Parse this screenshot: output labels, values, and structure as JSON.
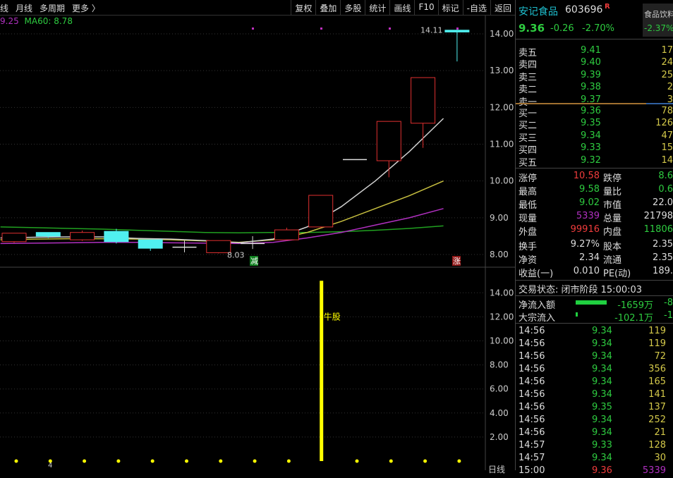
{
  "toolbar": {
    "left": [
      "线",
      "月线",
      "多周期",
      "更多 〉"
    ],
    "right": [
      "复权",
      "叠加",
      "多股",
      "统计",
      "画线",
      "F10",
      "标记",
      "-自选",
      "返回"
    ]
  },
  "ma_legend": {
    "prev": "9.25",
    "ma60": "MA60: 8.78"
  },
  "colors": {
    "up": "#e03030",
    "down": "#50f0f0",
    "ma_white": "#d0d0d0",
    "ma_yellow": "#c8c040",
    "ma_magenta": "#b030c0",
    "ma_green": "#20a020",
    "signal": "#ffff00"
  },
  "chart_data": [
    {
      "type": "candlestick",
      "y_ticks": [
        "14.00",
        "13.00",
        "12.00",
        "11.00",
        "10.00",
        "9.00",
        "8.00"
      ],
      "ylim": [
        7.8,
        14.2
      ],
      "candles": [
        {
          "o": 8.35,
          "c": 8.58,
          "h": 8.58,
          "l": 8.32
        },
        {
          "o": 8.6,
          "c": 8.5,
          "h": 8.6,
          "l": 8.45
        },
        {
          "o": 8.4,
          "c": 8.6,
          "h": 8.65,
          "l": 8.37
        },
        {
          "o": 8.63,
          "c": 8.35,
          "h": 8.7,
          "l": 8.3
        },
        {
          "o": 8.4,
          "c": 8.17,
          "h": 8.4,
          "l": 8.1
        },
        {
          "o": 8.2,
          "c": 8.2,
          "h": 8.38,
          "l": 8.06
        },
        {
          "o": 8.05,
          "c": 8.38,
          "h": 8.38,
          "l": 8.03
        },
        {
          "o": 8.3,
          "c": 8.3,
          "h": 8.5,
          "l": 8.15
        },
        {
          "o": 8.4,
          "c": 8.67,
          "h": 8.73,
          "l": 8.38
        },
        {
          "o": 8.75,
          "c": 9.61,
          "h": 9.61,
          "l": 8.72
        },
        {
          "o": 10.58,
          "c": 10.58,
          "h": 10.58,
          "l": 10.58
        },
        {
          "o": 10.55,
          "c": 11.62,
          "h": 11.62,
          "l": 10.1
        },
        {
          "o": 11.57,
          "c": 12.81,
          "h": 12.81,
          "l": 10.9
        },
        {
          "o": 14.1,
          "c": 14.05,
          "h": 14.11,
          "l": 13.25
        }
      ],
      "ma": {
        "white": [
          8.45,
          8.47,
          8.48,
          8.48,
          8.44,
          8.42,
          8.38,
          8.32,
          8.42,
          8.75,
          9.3,
          10.0,
          10.8,
          11.7
        ],
        "yellow": [
          8.4,
          8.42,
          8.43,
          8.43,
          8.42,
          8.4,
          8.37,
          8.33,
          8.4,
          8.6,
          8.9,
          9.25,
          9.6,
          10.0
        ],
        "magenta": [
          8.3,
          8.31,
          8.32,
          8.33,
          8.33,
          8.32,
          8.31,
          8.3,
          8.33,
          8.45,
          8.6,
          8.8,
          9.0,
          9.25
        ],
        "green": [
          8.75,
          8.73,
          8.71,
          8.69,
          8.66,
          8.63,
          8.6,
          8.59,
          8.6,
          8.6,
          8.62,
          8.66,
          8.71,
          8.78
        ]
      },
      "annotations": {
        "high": "14.11",
        "low": "8.03",
        "mark_down": "减",
        "mark_up": "涨"
      }
    },
    {
      "type": "bar",
      "y_ticks": [
        "14.00",
        "12.00",
        "10.00",
        "8.00",
        "6.00",
        "4.00",
        "2.00"
      ],
      "ylim": [
        0,
        15.5
      ],
      "bar_index": 9,
      "bar_value": 15,
      "bar_label": "牛股",
      "dots_at": [
        0,
        1,
        2,
        3,
        4,
        5,
        6,
        7,
        8,
        10,
        11,
        12,
        13
      ]
    }
  ],
  "bottom": {
    "period": "日线",
    "index_mark": "4"
  },
  "stock": {
    "name": "安记食品",
    "code": "603696",
    "badge": "R",
    "price": "9.36",
    "change": "-0.26",
    "pct": "-2.70%",
    "sector": "食品饮料",
    "sector_pct": "-2.37%"
  },
  "asks": [
    [
      "卖五",
      "9.41",
      "17"
    ],
    [
      "卖四",
      "9.40",
      "24"
    ],
    [
      "卖三",
      "9.39",
      "25"
    ],
    [
      "卖二",
      "9.38",
      "2"
    ],
    [
      "卖一",
      "9.37",
      "3"
    ]
  ],
  "bids": [
    [
      "买一",
      "9.36",
      "78"
    ],
    [
      "买二",
      "9.35",
      "126"
    ],
    [
      "买三",
      "9.34",
      "47"
    ],
    [
      "买四",
      "9.33",
      "15"
    ],
    [
      "买五",
      "9.32",
      "14"
    ]
  ],
  "stats": [
    [
      "涨停",
      "10.58",
      "跌停",
      "8.6"
    ],
    [
      "最高",
      "9.58",
      "量比",
      "0.6"
    ],
    [
      "最低",
      "9.02",
      "市值",
      "22.0"
    ],
    [
      "现量",
      "5339",
      "总量",
      "21798"
    ],
    [
      "外盘",
      "99916",
      "内盘",
      "11806"
    ]
  ],
  "stats2": [
    [
      "换手",
      "9.27%",
      "股本",
      "2.35"
    ],
    [
      "净资",
      "2.34",
      "流通",
      "2.35"
    ],
    [
      "收益(一)",
      "0.010",
      "PE(动)",
      "189."
    ]
  ],
  "status": "交易状态: 闭市阶段 15:00:03",
  "flows": [
    [
      "净流入额",
      "-1659万",
      "-8"
    ],
    [
      "大宗流入",
      "-102.1万",
      "-1"
    ]
  ],
  "ticks": [
    [
      "14:56",
      "9.34",
      "119"
    ],
    [
      "14:56",
      "9.34",
      "119"
    ],
    [
      "14:56",
      "9.34",
      "72"
    ],
    [
      "14:56",
      "9.34",
      "356"
    ],
    [
      "14:56",
      "9.34",
      "165"
    ],
    [
      "14:56",
      "9.34",
      "141"
    ],
    [
      "14:56",
      "9.35",
      "137"
    ],
    [
      "14:56",
      "9.34",
      "252"
    ],
    [
      "14:56",
      "9.34",
      "21"
    ],
    [
      "14:57",
      "9.33",
      "128"
    ],
    [
      "14:57",
      "9.34",
      "30"
    ],
    [
      "15:00",
      "9.36",
      "5339"
    ]
  ]
}
